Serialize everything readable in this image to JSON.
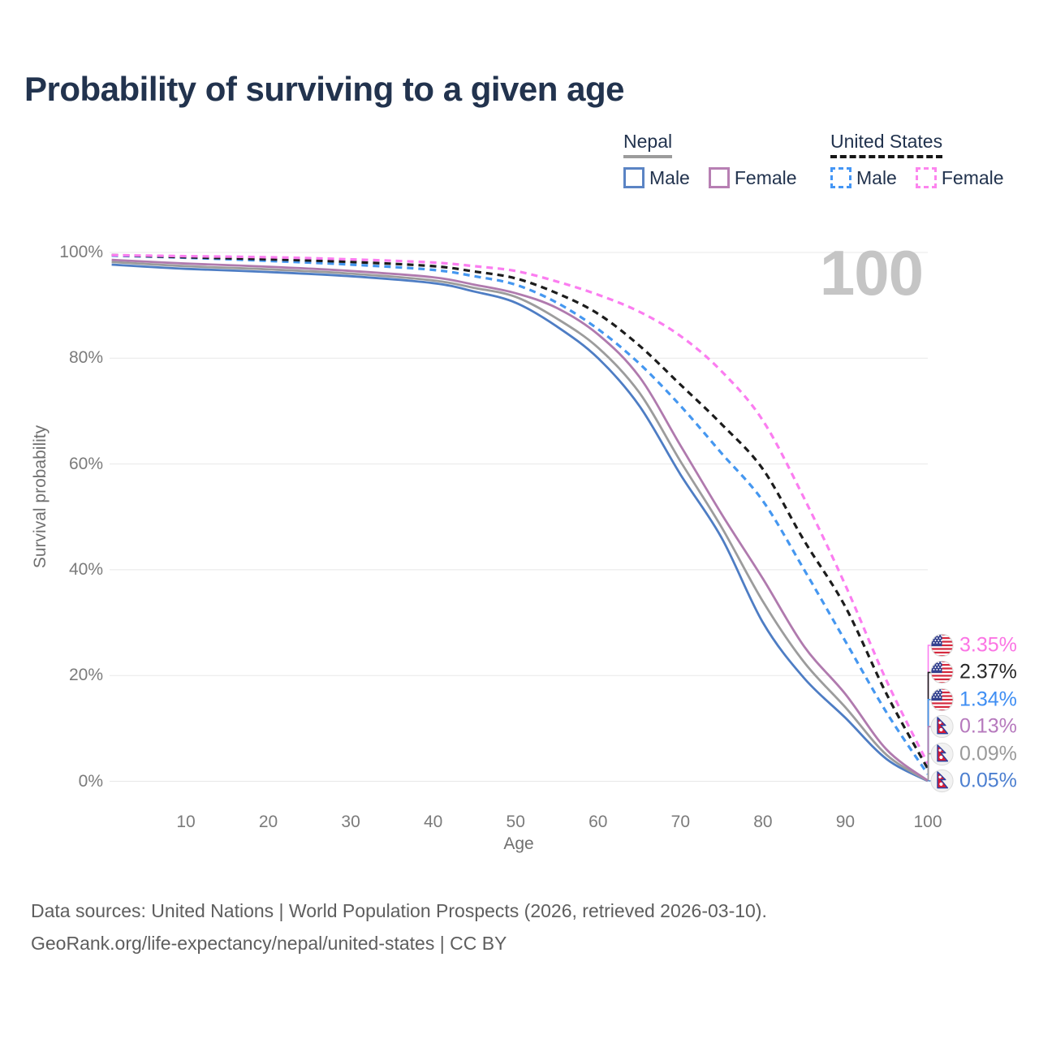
{
  "title": "Probability of surviving to a given age",
  "legend": {
    "groups": [
      {
        "key": "nepal",
        "label": "Nepal",
        "line_style": "solid",
        "line_color": "#9c9c9c",
        "items": [
          {
            "key": "nepal-male",
            "label": "Male",
            "color": "#5b84c4",
            "dashed": false
          },
          {
            "key": "nepal-female",
            "label": "Female",
            "color": "#b77fb3",
            "dashed": false
          }
        ]
      },
      {
        "key": "united-states",
        "label": "United States",
        "line_style": "dashed",
        "line_color": "#1c1c1c",
        "items": [
          {
            "key": "us-male",
            "label": "Male",
            "color": "#4496f5",
            "dashed": true
          },
          {
            "key": "us-female",
            "label": "Female",
            "color": "#fc85ee",
            "dashed": true
          }
        ]
      }
    ]
  },
  "chart_data": {
    "type": "line",
    "title": "Probability of surviving to a given age",
    "xlabel": "Age",
    "ylabel": "Survival probability",
    "xlim": [
      1,
      100
    ],
    "ylim": [
      0,
      100
    ],
    "grid": "horizontal",
    "hovered_age_label": "100",
    "x_ticks": [
      10,
      20,
      30,
      40,
      50,
      60,
      70,
      80,
      90,
      100
    ],
    "y_ticks": [
      {
        "label": "0%",
        "value": 0
      },
      {
        "label": "20%",
        "value": 20
      },
      {
        "label": "40%",
        "value": 40
      },
      {
        "label": "60%",
        "value": 60
      },
      {
        "label": "80%",
        "value": 80
      },
      {
        "label": "100%",
        "value": 100
      }
    ],
    "ages": [
      1,
      10,
      20,
      30,
      40,
      45,
      50,
      55,
      60,
      65,
      70,
      75,
      80,
      85,
      90,
      95,
      100
    ],
    "series": [
      {
        "key": "us-female",
        "name": "United States Female",
        "country": "United States",
        "sex": "Female",
        "color": "#fb7df0",
        "label_color": "#fb74e4",
        "dashed": true,
        "flag": "us",
        "end_label": "3.35%",
        "values": [
          99.5,
          99.3,
          99.1,
          98.7,
          98.1,
          97.4,
          96.5,
          94.5,
          92.0,
          88.8,
          84.2,
          77.5,
          68.2,
          53.5,
          37.1,
          19.0,
          3.35
        ]
      },
      {
        "key": "us-both",
        "name": "United States Both sexes",
        "country": "United States",
        "sex": "Both sexes",
        "color": "#1c1c1c",
        "label_color": "#282828",
        "dashed": true,
        "flag": "us",
        "end_label": "2.37%",
        "values": [
          99.5,
          99.1,
          98.7,
          98.2,
          97.4,
          96.4,
          95.1,
          92.3,
          88.4,
          82.4,
          75.0,
          67.5,
          59.0,
          45.5,
          33.0,
          16.5,
          2.37
        ]
      },
      {
        "key": "us-male",
        "name": "United States Male",
        "country": "United States",
        "sex": "Male",
        "color": "#4597f0",
        "label_color": "#3f8ef3",
        "dashed": true,
        "flag": "us",
        "end_label": "1.34%",
        "values": [
          99.4,
          99.0,
          98.4,
          97.7,
          96.7,
          95.5,
          93.9,
          90.5,
          85.5,
          79.0,
          71.0,
          62.0,
          53.0,
          40.0,
          26.5,
          13.0,
          1.34
        ]
      },
      {
        "key": "nepal-female",
        "name": "Nepal Female",
        "country": "Nepal",
        "sex": "Female",
        "color": "#b07aae",
        "label_color": "#b679bd",
        "dashed": false,
        "flag": "np",
        "end_label": "0.13%",
        "values": [
          98.6,
          97.9,
          97.3,
          96.5,
          95.3,
          93.9,
          92.3,
          89.5,
          84.5,
          76.5,
          63.5,
          50.5,
          38.3,
          25.5,
          16.5,
          6.0,
          0.13
        ]
      },
      {
        "key": "nepal-both",
        "name": "Nepal Both sexes",
        "country": "Nepal",
        "sex": "Both sexes",
        "color": "#9c9c9c",
        "label_color": "#9a9a9a",
        "dashed": false,
        "flag": "np",
        "end_label": "0.09%",
        "values": [
          98.2,
          97.4,
          96.8,
          96.0,
          94.7,
          93.3,
          91.6,
          87.5,
          82.0,
          73.5,
          60.5,
          48.0,
          34.0,
          22.5,
          14.0,
          5.0,
          0.09
        ]
      },
      {
        "key": "nepal-male",
        "name": "Nepal Male",
        "country": "Nepal",
        "sex": "Male",
        "color": "#4e7dc4",
        "label_color": "#4c7fd0",
        "dashed": false,
        "flag": "np",
        "end_label": "0.05%",
        "values": [
          97.7,
          96.9,
          96.3,
          95.5,
          94.2,
          92.6,
          90.5,
          86.0,
          80.0,
          71.0,
          58.0,
          46.0,
          30.0,
          19.5,
          12.0,
          4.2,
          0.05
        ]
      }
    ]
  },
  "footer": {
    "line1": "Data sources: United Nations | World Population Prospects (2026, retrieved 2026-03-10).",
    "line2": "GeoRank.org/life-expectancy/nepal/united-states | CC BY"
  }
}
